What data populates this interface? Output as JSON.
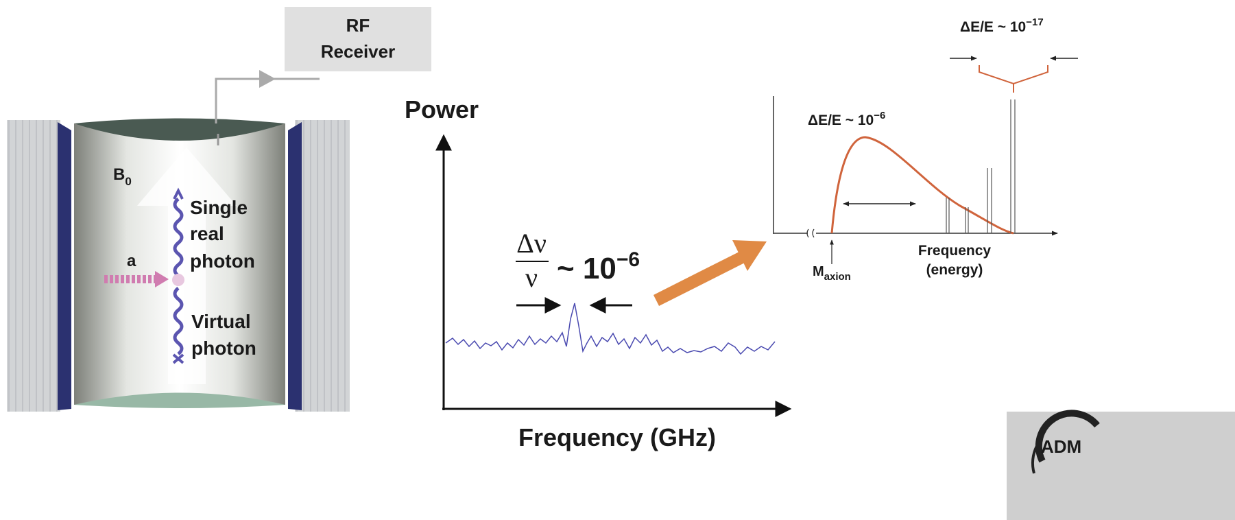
{
  "cavity": {
    "receiver_label": [
      "RF",
      "Receiver"
    ],
    "field_label": {
      "main": "B",
      "sub": "0"
    },
    "axion_label": "a",
    "real_photon_label": [
      "Single",
      "real",
      "photon"
    ],
    "virtual_photon_label": [
      "Virtual",
      "photon"
    ]
  },
  "spectrum": {
    "y_axis_label": "Power",
    "x_axis_label": "Frequency (GHz)",
    "width_label": {
      "numerator": "Δν",
      "denominator": "ν",
      "value": "~ 10",
      "exponent": "−6"
    }
  },
  "energy_plot": {
    "narrow_width_label": {
      "value": "ΔE/E ~ 10",
      "exponent": "−17"
    },
    "wide_width_label": {
      "value": "ΔE/E ~ 10",
      "exponent": "−6"
    },
    "mass_label": {
      "main": "M",
      "sub": "axion"
    },
    "x_axis_label": [
      "Frequency",
      "(energy)"
    ]
  },
  "logo": "ADM"
}
